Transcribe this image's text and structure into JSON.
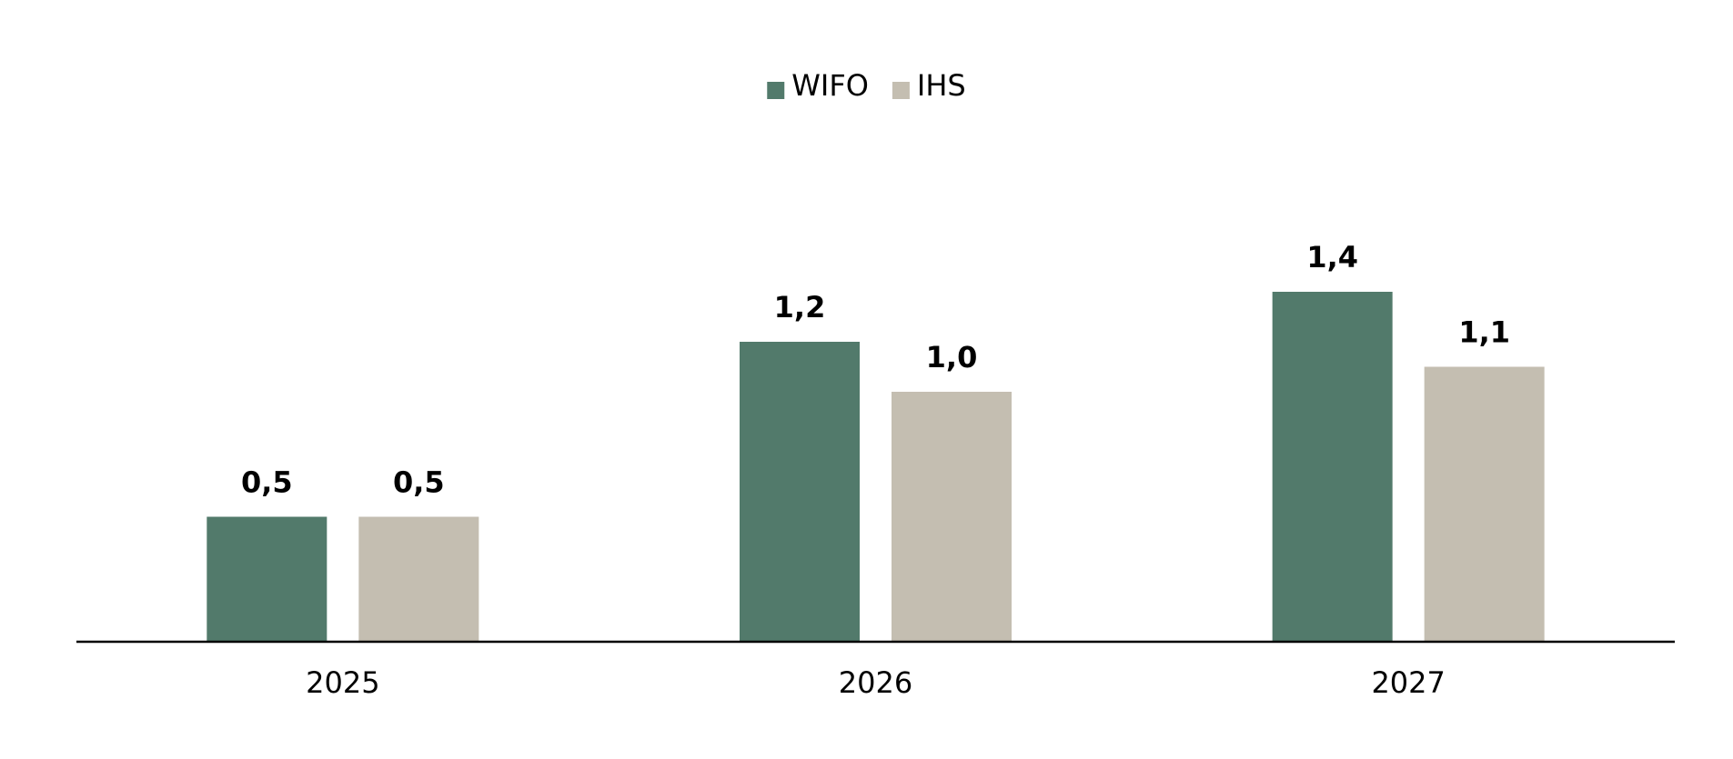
{
  "chart_data": {
    "type": "bar",
    "categories": [
      "2025",
      "2026",
      "2027"
    ],
    "series": [
      {
        "name": "WIFO",
        "values": [
          0.5,
          1.2,
          1.4
        ],
        "labels": [
          "0,5",
          "1,2",
          "1,4"
        ],
        "color": "#527a6b"
      },
      {
        "name": "IHS",
        "values": [
          0.5,
          1.0,
          1.1
        ],
        "labels": [
          "0,5",
          "1,0",
          "1,1"
        ],
        "color": "#c4beb1"
      }
    ],
    "ylim": [
      0,
      2.4
    ],
    "grid": false,
    "legend_position": "top-center",
    "axis_color": "#000000"
  }
}
